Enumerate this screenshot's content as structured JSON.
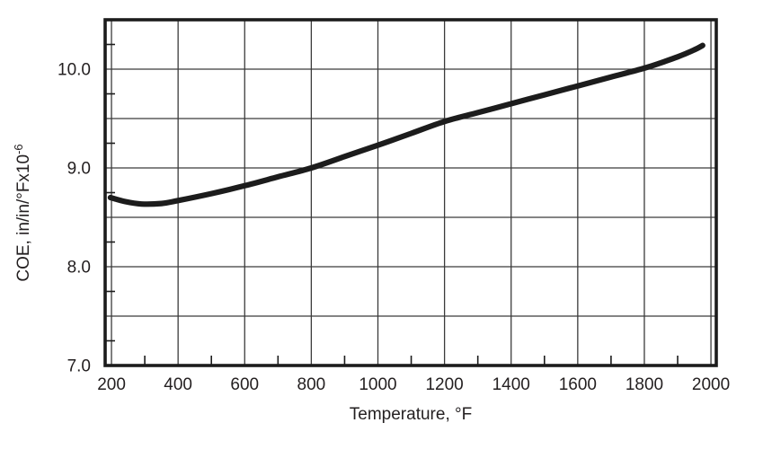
{
  "figure": {
    "background": "#ffffff"
  },
  "colors": {
    "text": "#231f20",
    "grid": "#3b3b3b",
    "frame": "#1c1c1c",
    "curve": "#1c1c1c"
  },
  "axes": {
    "x_title": "Temperature, °F",
    "y_title_main": "COE, in/in/°Fx10",
    "y_title_exponent": "-6"
  },
  "chart_data": {
    "type": "line",
    "title": "",
    "xlabel": "Temperature, °F",
    "ylabel": "COE, in/in/°Fx10^-6",
    "grid": true,
    "legend": "none",
    "x_axis": {
      "min": 181,
      "max": 2016,
      "major_ticks": [
        200,
        400,
        600,
        800,
        1000,
        1200,
        1400,
        1600,
        1800,
        2000
      ],
      "tick_labels": [
        "200",
        "400",
        "600",
        "800",
        "1000",
        "1200",
        "1400",
        "1600",
        "1800",
        "2000"
      ],
      "gridlines": [
        200,
        400,
        600,
        800,
        1000,
        1200,
        1400,
        1600,
        1800,
        2000
      ],
      "minor_ticks": [
        300,
        500,
        700,
        900,
        1100,
        1300,
        1500,
        1700,
        1900
      ]
    },
    "y_axis": {
      "min": 7.0,
      "max": 10.5,
      "major_ticks": [
        7.0,
        8.0,
        9.0,
        10.0
      ],
      "tick_labels": [
        "7.0",
        "8.0",
        "9.0",
        "10.0"
      ],
      "gridlines": [
        7.5,
        8.0,
        8.5,
        9.0,
        9.5,
        10.0
      ],
      "minor_ticks": [
        7.25,
        7.75,
        8.25,
        8.75,
        9.25,
        9.75,
        10.25
      ]
    },
    "series": [
      {
        "name": "COE",
        "points": [
          [
            197,
            8.7
          ],
          [
            240,
            8.66
          ],
          [
            290,
            8.635
          ],
          [
            350,
            8.64
          ],
          [
            400,
            8.67
          ],
          [
            500,
            8.74
          ],
          [
            600,
            8.82
          ],
          [
            700,
            8.91
          ],
          [
            800,
            9.0
          ],
          [
            900,
            9.115
          ],
          [
            1000,
            9.23
          ],
          [
            1100,
            9.35
          ],
          [
            1200,
            9.47
          ],
          [
            1300,
            9.56
          ],
          [
            1400,
            9.65
          ],
          [
            1500,
            9.74
          ],
          [
            1600,
            9.83
          ],
          [
            1700,
            9.92
          ],
          [
            1800,
            10.01
          ],
          [
            1850,
            10.065
          ],
          [
            1900,
            10.125
          ],
          [
            1950,
            10.195
          ],
          [
            1975,
            10.24
          ]
        ]
      }
    ]
  }
}
